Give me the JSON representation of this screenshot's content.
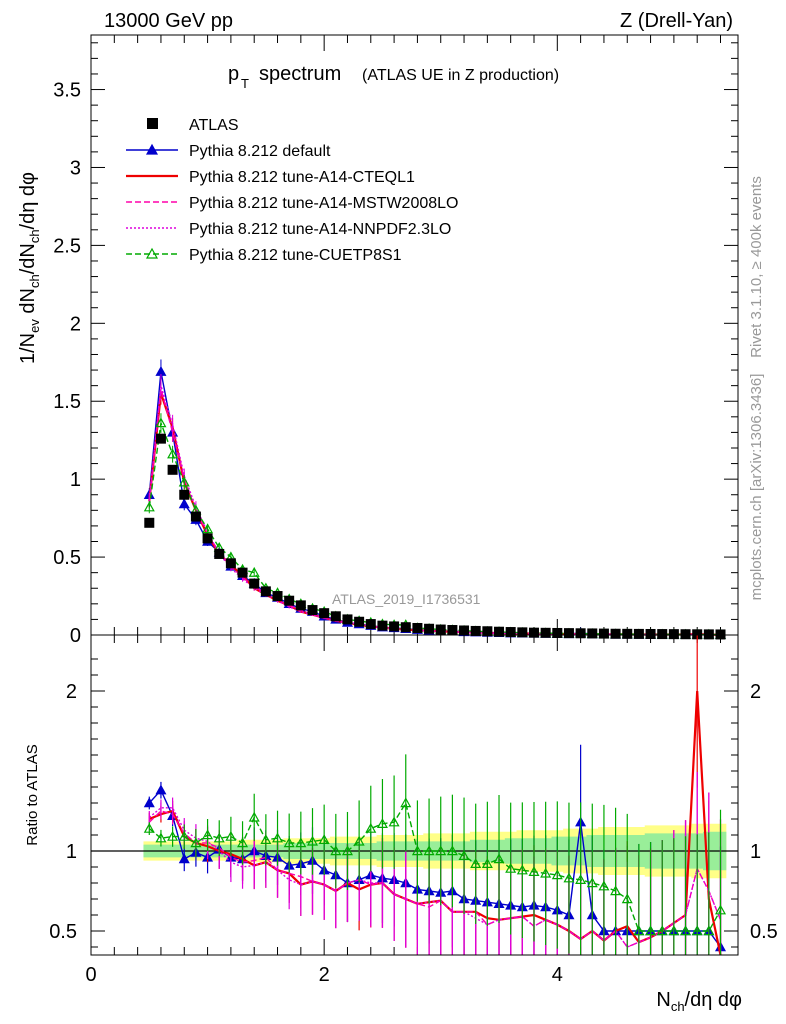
{
  "header": {
    "energy_label": "13000 GeV pp",
    "process_label": "Z (Drell-Yan)"
  },
  "side_labels": {
    "rivet": "Rivet 3.1.10, ≥ 400k events",
    "mcplots": "mcplots.cern.ch [arXiv:1306.3436]"
  },
  "chart_data": [
    {
      "type": "scatter",
      "panel": "main",
      "title": "spectrum",
      "title_prefix": "p",
      "title_subscript": "T",
      "subtitle": "(ATLAS UE in Z production)",
      "analysis_tag": "ATLAS_2019_I1736531",
      "ylabel_parts": [
        "1/N",
        "ev",
        " dN",
        "ch",
        "/dN",
        "ch",
        "/dη dφ"
      ],
      "xlim": [
        0,
        5.55
      ],
      "ylim": [
        0,
        3.85
      ],
      "y_ticks": [
        "0",
        "0.5",
        "1",
        "1.5",
        "2",
        "2.5",
        "3",
        "3.5"
      ],
      "y_tick_values": [
        0,
        0.5,
        1,
        1.5,
        2,
        2.5,
        3,
        3.5
      ],
      "x": [
        0.5,
        0.6,
        0.7,
        0.8,
        0.9,
        1.0,
        1.1,
        1.2,
        1.3,
        1.4,
        1.5,
        1.6,
        1.7,
        1.8,
        1.9,
        2.0,
        2.1,
        2.2,
        2.3,
        2.4,
        2.5,
        2.6,
        2.7,
        2.8,
        2.9,
        3.0,
        3.1,
        3.2,
        3.3,
        3.4,
        3.5,
        3.6,
        3.7,
        3.8,
        3.9,
        4.0,
        4.1,
        4.2,
        4.3,
        4.4,
        4.5,
        4.6,
        4.7,
        4.8,
        4.9,
        5.0,
        5.1,
        5.2,
        5.3,
        5.4
      ],
      "series": [
        {
          "name": "ATLAS",
          "color": "#000000",
          "style": "marker-square",
          "values": [
            0.72,
            1.26,
            1.06,
            0.9,
            0.76,
            0.62,
            0.52,
            0.46,
            0.4,
            0.33,
            0.28,
            0.25,
            0.22,
            0.19,
            0.16,
            0.14,
            0.12,
            0.1,
            0.085,
            0.07,
            0.06,
            0.055,
            0.05,
            0.045,
            0.04,
            0.035,
            0.032,
            0.029,
            0.026,
            0.024,
            0.021,
            0.019,
            0.017,
            0.015,
            0.014,
            0.013,
            0.012,
            0.011,
            0.01,
            0.009,
            0.008,
            0.0075,
            0.007,
            0.0065,
            0.006,
            0.0055,
            0.005,
            0.0045,
            0.004,
            0.0035
          ]
        },
        {
          "name": "Pythia 8.212 default",
          "color": "#0000cc",
          "style": "solid-triangle",
          "values": [
            0.9,
            1.69,
            1.3,
            0.84,
            0.74,
            0.6,
            0.53,
            0.44,
            0.38,
            0.33,
            0.27,
            0.24,
            0.2,
            0.17,
            0.15,
            0.12,
            0.1,
            0.08,
            0.07,
            0.06,
            0.05,
            0.045,
            0.04,
            0.034,
            0.03,
            0.026,
            0.024,
            0.02,
            0.018,
            0.016,
            0.014,
            0.012,
            0.011,
            0.01,
            0.009,
            0.008,
            0.007,
            0.013,
            0.006,
            0.005,
            0.004,
            0.004,
            0.003,
            0.003,
            0.002,
            0.002,
            0.002,
            0.002,
            0.001,
            0.001
          ]
        },
        {
          "name": "Pythia 8.212 tune-A14-CTEQL1",
          "color": "#ee0000",
          "style": "solid-line",
          "values": [
            0.86,
            1.55,
            1.33,
            0.98,
            0.8,
            0.64,
            0.52,
            0.45,
            0.38,
            0.3,
            0.26,
            0.22,
            0.19,
            0.15,
            0.13,
            0.11,
            0.09,
            0.08,
            0.065,
            0.055,
            0.048,
            0.04,
            0.035,
            0.03,
            0.027,
            0.024,
            0.02,
            0.018,
            0.016,
            0.014,
            0.012,
            0.011,
            0.01,
            0.009,
            0.008,
            0.007,
            0.006,
            0.005,
            0.005,
            0.004,
            0.004,
            0.004,
            0.003,
            0.003,
            0.003,
            0.003,
            0.003,
            0.006,
            0.003,
            0.001
          ]
        },
        {
          "name": "Pythia 8.212 tune-A14-MSTW2008LO",
          "color": "#ff00aa",
          "style": "dashed-line",
          "values": [
            0.85,
            1.58,
            1.3,
            1.0,
            0.8,
            0.65,
            0.53,
            0.44,
            0.37,
            0.31,
            0.27,
            0.22,
            0.19,
            0.16,
            0.13,
            0.11,
            0.09,
            0.08,
            0.07,
            0.055,
            0.048,
            0.04,
            0.035,
            0.03,
            0.026,
            0.024,
            0.02,
            0.018,
            0.016,
            0.013,
            0.012,
            0.011,
            0.01,
            0.008,
            0.008,
            0.007,
            0.006,
            0.005,
            0.005,
            0.004,
            0.004,
            0.003,
            0.003,
            0.003,
            0.003,
            0.003,
            0.003,
            0.004,
            0.003,
            0.002
          ]
        },
        {
          "name": "Pythia 8.212 tune-A14-NNPDF2.3LO",
          "color": "#dd00dd",
          "style": "dotted-line",
          "values": [
            0.87,
            1.6,
            1.35,
            1.02,
            0.82,
            0.66,
            0.52,
            0.43,
            0.36,
            0.3,
            0.26,
            0.22,
            0.18,
            0.15,
            0.13,
            0.11,
            0.09,
            0.08,
            0.07,
            0.056,
            0.048,
            0.04,
            0.035,
            0.03,
            0.027,
            0.024,
            0.02,
            0.018,
            0.015,
            0.013,
            0.012,
            0.011,
            0.01,
            0.008,
            0.008,
            0.007,
            0.006,
            0.005,
            0.005,
            0.004,
            0.004,
            0.003,
            0.003,
            0.003,
            0.003,
            0.003,
            0.003,
            0.004,
            0.003,
            0.002
          ]
        },
        {
          "name": "Pythia 8.212 tune-CUETP8S1",
          "color": "#00aa00",
          "style": "dashed-open-triangle",
          "values": [
            0.82,
            1.36,
            1.16,
            0.98,
            0.8,
            0.68,
            0.56,
            0.5,
            0.42,
            0.4,
            0.3,
            0.27,
            0.23,
            0.2,
            0.17,
            0.15,
            0.12,
            0.1,
            0.09,
            0.08,
            0.07,
            0.065,
            0.065,
            0.045,
            0.04,
            0.035,
            0.032,
            0.028,
            0.024,
            0.022,
            0.02,
            0.017,
            0.015,
            0.013,
            0.012,
            0.011,
            0.01,
            0.009,
            0.008,
            0.007,
            0.006,
            0.006,
            0.005,
            0.005,
            0.004,
            0.004,
            0.003,
            0.003,
            0.003,
            0.002
          ]
        }
      ]
    },
    {
      "type": "scatter",
      "panel": "ratio",
      "ylabel": "Ratio to ATLAS",
      "xlabel_parts": [
        "N",
        "ch",
        "/dη dφ"
      ],
      "xlim": [
        0,
        5.55
      ],
      "ylim": [
        0.35,
        2.35
      ],
      "x_ticks": [
        "0",
        "2",
        "4"
      ],
      "x_tick_values": [
        0,
        2,
        4
      ],
      "y_ticks": [
        "0.5",
        "1",
        "2"
      ],
      "y_tick_values": [
        0.5,
        1,
        2
      ],
      "band_inner": [
        0.04,
        0.04,
        0.04,
        0.04,
        0.04,
        0.04,
        0.04,
        0.04,
        0.04,
        0.04,
        0.04,
        0.04,
        0.05,
        0.05,
        0.05,
        0.05,
        0.05,
        0.05,
        0.05,
        0.05,
        0.06,
        0.06,
        0.06,
        0.06,
        0.06,
        0.06,
        0.06,
        0.06,
        0.07,
        0.07,
        0.07,
        0.08,
        0.08,
        0.08,
        0.08,
        0.09,
        0.09,
        0.09,
        0.1,
        0.1,
        0.1,
        0.1,
        0.1,
        0.11,
        0.11,
        0.11,
        0.11,
        0.11,
        0.12,
        0.12
      ],
      "band_outer": [
        0.06,
        0.06,
        0.06,
        0.06,
        0.06,
        0.06,
        0.06,
        0.06,
        0.07,
        0.07,
        0.07,
        0.07,
        0.08,
        0.08,
        0.08,
        0.08,
        0.09,
        0.09,
        0.09,
        0.09,
        0.1,
        0.1,
        0.1,
        0.1,
        0.11,
        0.11,
        0.11,
        0.11,
        0.12,
        0.12,
        0.12,
        0.12,
        0.13,
        0.13,
        0.13,
        0.13,
        0.14,
        0.14,
        0.14,
        0.15,
        0.15,
        0.15,
        0.15,
        0.16,
        0.16,
        0.16,
        0.16,
        0.17,
        0.17,
        0.17
      ],
      "series": [
        {
          "name": "Pythia 8.212 default",
          "color": "#0000cc",
          "values": [
            1.3,
            1.38,
            1.22,
            0.95,
            0.99,
            0.96,
            1.01,
            0.96,
            0.95,
            1.0,
            0.97,
            0.96,
            0.91,
            0.92,
            0.94,
            0.88,
            0.85,
            0.8,
            0.82,
            0.85,
            0.83,
            0.82,
            0.8,
            0.76,
            0.75,
            0.74,
            0.75,
            0.7,
            0.69,
            0.68,
            0.67,
            0.66,
            0.65,
            0.66,
            0.65,
            0.63,
            0.6,
            1.18,
            0.6,
            0.5,
            0.5,
            0.5,
            0.5,
            0.5,
            0.5,
            0.5,
            0.5,
            0.5,
            0.5,
            0.4
          ]
        },
        {
          "name": "Pythia 8.212 tune-A14-CTEQL1",
          "color": "#ee0000",
          "values": [
            1.2,
            1.23,
            1.25,
            1.09,
            1.05,
            1.03,
            1.0,
            0.98,
            0.95,
            0.91,
            0.93,
            0.88,
            0.86,
            0.79,
            0.81,
            0.79,
            0.75,
            0.8,
            0.76,
            0.79,
            0.8,
            0.73,
            0.7,
            0.67,
            0.68,
            0.69,
            0.62,
            0.62,
            0.62,
            0.58,
            0.57,
            0.58,
            0.59,
            0.6,
            0.57,
            0.54,
            0.5,
            0.45,
            0.5,
            0.44,
            0.5,
            0.53,
            0.43,
            0.46,
            0.5,
            0.55,
            0.6,
            2.0,
            0.7,
            0.25
          ]
        },
        {
          "name": "Pythia 8.212 tune-A14-MSTW2008LO",
          "color": "#ff00aa",
          "values": [
            1.18,
            1.25,
            1.23,
            1.11,
            1.05,
            1.05,
            1.02,
            0.96,
            0.93,
            0.94,
            0.96,
            0.88,
            0.86,
            0.84,
            0.81,
            0.79,
            0.75,
            0.8,
            0.82,
            0.79,
            0.8,
            0.73,
            0.7,
            0.67,
            0.65,
            0.69,
            0.62,
            0.62,
            0.62,
            0.54,
            0.57,
            0.58,
            0.59,
            0.53,
            0.57,
            0.54,
            0.5,
            0.45,
            0.5,
            0.44,
            0.5,
            0.4,
            0.43,
            0.46,
            0.5,
            0.55,
            0.6,
            0.89,
            0.75,
            0.57
          ]
        },
        {
          "name": "Pythia 8.212 tune-A14-NNPDF2.3LO",
          "color": "#dd00dd",
          "values": [
            1.21,
            1.27,
            1.27,
            1.13,
            1.08,
            1.06,
            1.0,
            0.93,
            0.9,
            0.91,
            0.93,
            0.88,
            0.82,
            0.79,
            0.81,
            0.79,
            0.75,
            0.8,
            0.82,
            0.8,
            0.8,
            0.73,
            0.7,
            0.67,
            0.68,
            0.69,
            0.62,
            0.62,
            0.58,
            0.54,
            0.57,
            0.58,
            0.59,
            0.53,
            0.57,
            0.54,
            0.5,
            0.45,
            0.5,
            0.44,
            0.5,
            0.4,
            0.43,
            0.46,
            0.5,
            0.55,
            0.6,
            0.89,
            0.75,
            0.57
          ]
        },
        {
          "name": "Pythia 8.212 tune-CUETP8S1",
          "color": "#00aa00",
          "values": [
            1.14,
            1.08,
            1.09,
            1.09,
            1.05,
            1.1,
            1.08,
            1.09,
            1.05,
            1.21,
            1.07,
            1.08,
            1.05,
            1.05,
            1.06,
            1.07,
            1.0,
            1.0,
            1.06,
            1.14,
            1.17,
            1.18,
            1.3,
            1.0,
            1.0,
            1.0,
            1.0,
            0.97,
            0.92,
            0.92,
            0.95,
            0.89,
            0.88,
            0.87,
            0.86,
            0.85,
            0.83,
            0.82,
            0.8,
            0.78,
            0.75,
            0.7,
            0.5,
            0.5,
            0.5,
            0.5,
            0.5,
            0.5,
            0.5,
            0.63
          ]
        }
      ]
    }
  ]
}
